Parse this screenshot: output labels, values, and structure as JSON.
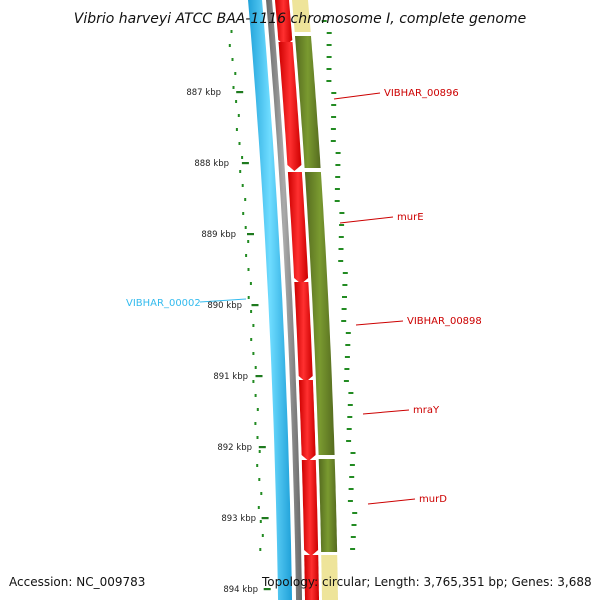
{
  "title": "Vibrio harveyi ATCC BAA-1116 chromosome I, complete genome",
  "footer": {
    "accession": "Accession: NC_009783",
    "topology": "Topology: circular; Length: 3,765,351 bp; Genes: 3,688"
  },
  "colors": {
    "forward_cds": "#ff0000",
    "reverse_cds": "#33ccff",
    "forward_label": "#cc0000",
    "reverse_label": "#33bbee",
    "backbone": "#808080",
    "cog_ring": "#6b8e23",
    "cog_ring_light": "#f0e68c",
    "gc_skew": "#228b22"
  },
  "ticks": [
    "887 kbp",
    "888 kbp",
    "889 kbp",
    "890 kbp",
    "891 kbp",
    "892 kbp",
    "893 kbp",
    "894 kbp"
  ],
  "gene_labels": [
    {
      "text": "VIBHAR_00896",
      "strand": "forward"
    },
    {
      "text": "murE",
      "strand": "forward"
    },
    {
      "text": "VIBHAR_00898",
      "strand": "forward"
    },
    {
      "text": "mraY",
      "strand": "forward"
    },
    {
      "text": "murD",
      "strand": "forward"
    },
    {
      "text": "VIBHAR_00002",
      "strand": "reverse"
    }
  ]
}
